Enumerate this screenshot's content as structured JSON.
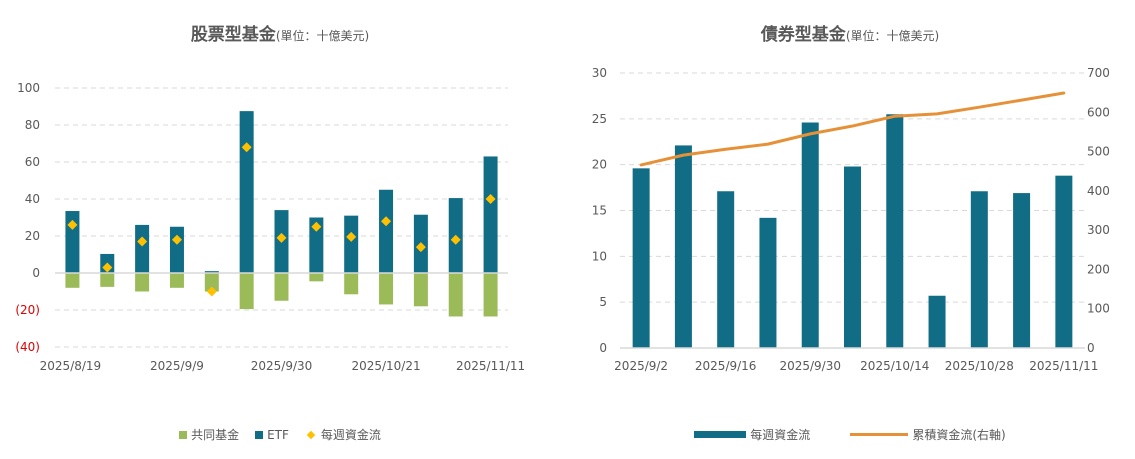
{
  "colors": {
    "etf": "#116d85",
    "mutual_fund": "#9bbb59",
    "weekly_flow_marker": "#ffc000",
    "bond_bar": "#116d85",
    "cumulative_line": "#e69138",
    "negative_tick": "#e00000",
    "grid": "#d9d9d9"
  },
  "chart_data": [
    {
      "type": "bar",
      "stacked": true,
      "title": "股票型基金",
      "subtitle": "(單位：十億美元)",
      "xlabel": "",
      "ylabel": "",
      "ylim": [
        -40,
        100
      ],
      "yticks": [
        100,
        80,
        60,
        40,
        20,
        0,
        -20,
        -40
      ],
      "ytick_labels": [
        "100",
        "80",
        "60",
        "40",
        "20",
        "0",
        "(20)",
        "(40)"
      ],
      "grid": true,
      "categories": [
        "2025/8/19",
        "2025/8/26",
        "2025/9/2",
        "2025/9/9",
        "2025/9/16",
        "2025/9/23",
        "2025/9/30",
        "2025/10/7",
        "2025/10/14",
        "2025/10/21",
        "2025/10/28",
        "2025/11/4",
        "2025/11/11"
      ],
      "xtick_labels": [
        "2025/8/19",
        "2025/9/9",
        "2025/9/30",
        "2025/10/21",
        "2025/11/11"
      ],
      "series": [
        {
          "name": "共同基金",
          "type": "bar",
          "values": [
            -8,
            -7.5,
            -10,
            -8,
            -10,
            -19.5,
            -15,
            -4.5,
            -11.5,
            -17,
            -18,
            -23.5,
            -23.5
          ]
        },
        {
          "name": "ETF",
          "type": "bar",
          "values": [
            33.5,
            10.3,
            26,
            25,
            1,
            87.5,
            34,
            30,
            31,
            45,
            31.5,
            40.5,
            63
          ]
        },
        {
          "name": "每週資金流",
          "type": "scatter",
          "marker": "diamond",
          "values": [
            26,
            3,
            17,
            18,
            -10,
            68,
            19,
            25,
            19.5,
            28,
            14,
            18,
            40
          ]
        }
      ],
      "legend": [
        "共同基金",
        "ETF",
        "每週資金流"
      ],
      "legend_position": "bottom"
    },
    {
      "type": "bar",
      "title": "債券型基金",
      "subtitle": "(單位：十億美元)",
      "xlabel": "",
      "ylabel": "",
      "ylim": [
        0,
        30
      ],
      "y2lim": [
        0,
        700
      ],
      "yticks": [
        30,
        25,
        20,
        15,
        10,
        5,
        0
      ],
      "y2ticks": [
        700,
        600,
        500,
        400,
        300,
        200,
        100,
        0
      ],
      "grid": true,
      "categories": [
        "2025/9/2",
        "2025/9/9",
        "2025/9/16",
        "2025/9/23",
        "2025/9/30",
        "2025/10/7",
        "2025/10/14",
        "2025/10/21",
        "2025/10/28",
        "2025/11/4",
        "2025/11/11"
      ],
      "xtick_labels": [
        "2025/9/2",
        "2025/9/16",
        "2025/9/30",
        "2025/10/14",
        "2025/10/28",
        "2025/11/11"
      ],
      "series": [
        {
          "name": "每週資金流",
          "type": "bar",
          "axis": "left",
          "values": [
            19.6,
            22.1,
            17.1,
            14.2,
            24.6,
            19.8,
            25.5,
            5.7,
            17.1,
            16.9,
            18.8
          ]
        },
        {
          "name": "累積資金流(右軸)",
          "type": "line",
          "axis": "right",
          "values": [
            466,
            491,
            506,
            519,
            545,
            565,
            590,
            596,
            613,
            631,
            649
          ]
        }
      ],
      "legend": [
        "每週資金流",
        "累積資金流(右軸)"
      ],
      "legend_position": "bottom"
    }
  ]
}
